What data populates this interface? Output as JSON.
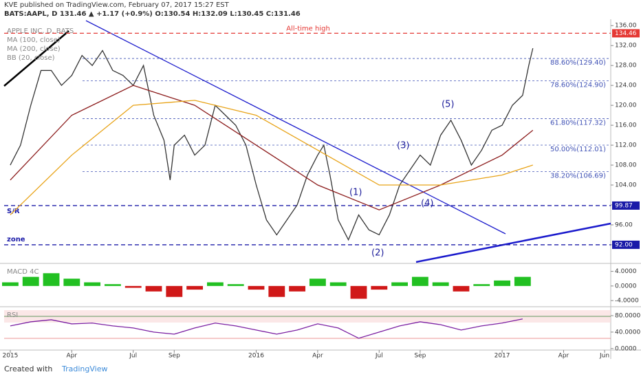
{
  "header": {
    "publisher": "KVE published on TradingView.com, February 07, 2017 15:27 EST",
    "quote": "BATS:AAPL, D 131.46 ▲ +1.17 (+0.9%) O:130.54 H:132.09 L:130.45 C:131.46"
  },
  "footer": {
    "created": "Created with",
    "brand": "TradingView"
  },
  "annotations": {
    "waves": [
      "(1)",
      "(2)",
      "(3)",
      "(4)",
      "(5)"
    ],
    "sr": "S/R",
    "zone": "zone",
    "bb": "BB (20, close)",
    "macd": "MACD 4C",
    "rsi": "RSI"
  },
  "chart_data": [
    {
      "type": "line",
      "title": "APPLE INC, D, BATS",
      "xlim": [
        -0.3,
        29.3
      ],
      "ylim": [
        88.4,
        137
      ],
      "yticks": [
        {
          "value": 92,
          "label": "92.00"
        },
        {
          "value": 96,
          "label": "96.00"
        },
        {
          "value": 100,
          "label": "100.00"
        },
        {
          "value": 104,
          "label": "104.00"
        },
        {
          "value": 108,
          "label": "108.00"
        },
        {
          "value": 112,
          "label": "112.00"
        },
        {
          "value": 116,
          "label": "116.00"
        },
        {
          "value": 120,
          "label": "120.00"
        },
        {
          "value": 124,
          "label": "124.00"
        },
        {
          "value": 128,
          "label": "128.00"
        },
        {
          "value": 132,
          "label": "132.00"
        },
        {
          "value": 136,
          "label": "136.00"
        }
      ],
      "series": [
        {
          "name": "APPLE INC, D, BATS",
          "color": "#333333",
          "x": [
            0,
            0.5,
            1,
            1.5,
            2,
            2.5,
            3,
            3.5,
            4,
            4.5,
            5,
            5.5,
            6,
            6.5,
            7,
            7.5,
            7.8,
            8,
            8.5,
            9,
            9.5,
            10,
            10.5,
            11,
            11.5,
            12,
            12.5,
            13,
            13.5,
            14,
            14.5,
            15,
            15.3,
            15.6,
            16,
            16.5,
            17,
            17.5,
            18,
            18.5,
            19,
            19.5,
            20,
            20.5,
            21,
            21.5,
            22,
            22.5,
            23,
            23.5,
            24,
            24.5,
            25,
            25.3,
            25.5
          ],
          "values": [
            108,
            112,
            120,
            127,
            127,
            124,
            126,
            130,
            128,
            131,
            127,
            126,
            124,
            128,
            118,
            113,
            105,
            112,
            114,
            110,
            112,
            120,
            118,
            116,
            112,
            104,
            97,
            94,
            97,
            100,
            106,
            110,
            112,
            106,
            97,
            93,
            98,
            95,
            94,
            98,
            104,
            107,
            110,
            108,
            114,
            117,
            113,
            108,
            111,
            115,
            116,
            120,
            122,
            128,
            131.46
          ]
        },
        {
          "name": "MA (100, close)",
          "color": "#8b1a1a",
          "x": [
            0,
            3,
            6,
            9,
            12,
            15,
            18,
            21,
            24,
            25.5
          ],
          "values": [
            105,
            118,
            124,
            120,
            112,
            104,
            99,
            104,
            110,
            115
          ]
        },
        {
          "name": "MA (200, close)",
          "color": "#e8a317",
          "x": [
            0,
            3,
            6,
            9,
            12,
            15,
            18,
            21,
            24,
            25.5
          ],
          "values": [
            98,
            110,
            120,
            121,
            118,
            111,
            104,
            104,
            106,
            108
          ]
        }
      ],
      "levels": [
        {
          "name": "All-time high",
          "value": 134.46,
          "value_label": "134.46",
          "color": "#e53935"
        },
        {
          "name": "88.60%(129.40)",
          "value": 129.4,
          "color": "#3f51b5"
        },
        {
          "name": "78.60%(124.90)",
          "value": 124.9,
          "color": "#3f51b5"
        },
        {
          "name": "61.80%(117.32)",
          "value": 117.32,
          "color": "#3f51b5"
        },
        {
          "name": "50.00%(112.01)",
          "value": 112.01,
          "color": "#3f51b5"
        },
        {
          "name": "38.20%(106.69)",
          "value": 106.69,
          "color": "#3f51b5"
        },
        {
          "name": "S/R",
          "value": 99.87,
          "value_label": "99.87",
          "color": "#1a1aa8"
        },
        {
          "name": "zone",
          "value": 92,
          "value_label": "92.00",
          "color": "#1a1aa8"
        }
      ]
    },
    {
      "type": "bar",
      "title": "MACD 4C",
      "xlim": [
        -0.3,
        29.3
      ],
      "ylim": [
        -5.5,
        6
      ],
      "yticks": [
        {
          "value": -4,
          "label": "-4.0000"
        },
        {
          "value": 0,
          "label": "0.0000"
        },
        {
          "value": 4,
          "label": "4.0000"
        }
      ],
      "pos_color": "#22c022",
      "neg_color": "#d01818",
      "x": [
        0,
        1,
        2,
        3,
        4,
        5,
        6,
        7,
        8,
        9,
        10,
        11,
        12,
        13,
        14,
        15,
        16,
        17,
        18,
        19,
        20,
        21,
        22,
        23,
        24,
        25
      ],
      "values": [
        1,
        2.5,
        3.5,
        2,
        1,
        0.5,
        -0.5,
        -1.5,
        -3,
        -1,
        1,
        0.5,
        -1,
        -3,
        -1.5,
        2,
        1,
        -3.5,
        -1,
        1,
        2.5,
        1,
        -1.5,
        0.5,
        1.5,
        2.5
      ]
    },
    {
      "type": "line",
      "title": "RSI",
      "xlim": [
        -0.3,
        29.3
      ],
      "ylim": [
        -2,
        100
      ],
      "yticks": [
        {
          "value": 0,
          "label": "0.0000"
        },
        {
          "value": 40,
          "label": "40.0000"
        },
        {
          "value": 80,
          "label": "80.0000"
        }
      ],
      "xticks": [
        {
          "value": 0,
          "label": "2015"
        },
        {
          "value": 3,
          "label": "Apr"
        },
        {
          "value": 6,
          "label": "Jul"
        },
        {
          "value": 8,
          "label": "Sep"
        },
        {
          "value": 12,
          "label": "2016"
        },
        {
          "value": 15,
          "label": "Apr"
        },
        {
          "value": 18,
          "label": "Jul"
        },
        {
          "value": 20,
          "label": "Sep"
        },
        {
          "value": 24,
          "label": "2017"
        },
        {
          "value": 27,
          "label": "Apr"
        },
        {
          "value": 29,
          "label": "Jun"
        }
      ],
      "series": [
        {
          "name": "RSI",
          "color": "#7b1fa2",
          "x": [
            0,
            1,
            2,
            3,
            4,
            5,
            6,
            7,
            8,
            9,
            10,
            11,
            12,
            13,
            14,
            15,
            16,
            17,
            18,
            19,
            20,
            21,
            22,
            23,
            24,
            25
          ],
          "values": [
            55,
            65,
            70,
            60,
            62,
            55,
            50,
            40,
            35,
            50,
            62,
            55,
            45,
            35,
            45,
            60,
            50,
            25,
            40,
            55,
            65,
            58,
            45,
            55,
            62,
            72
          ]
        }
      ]
    }
  ]
}
